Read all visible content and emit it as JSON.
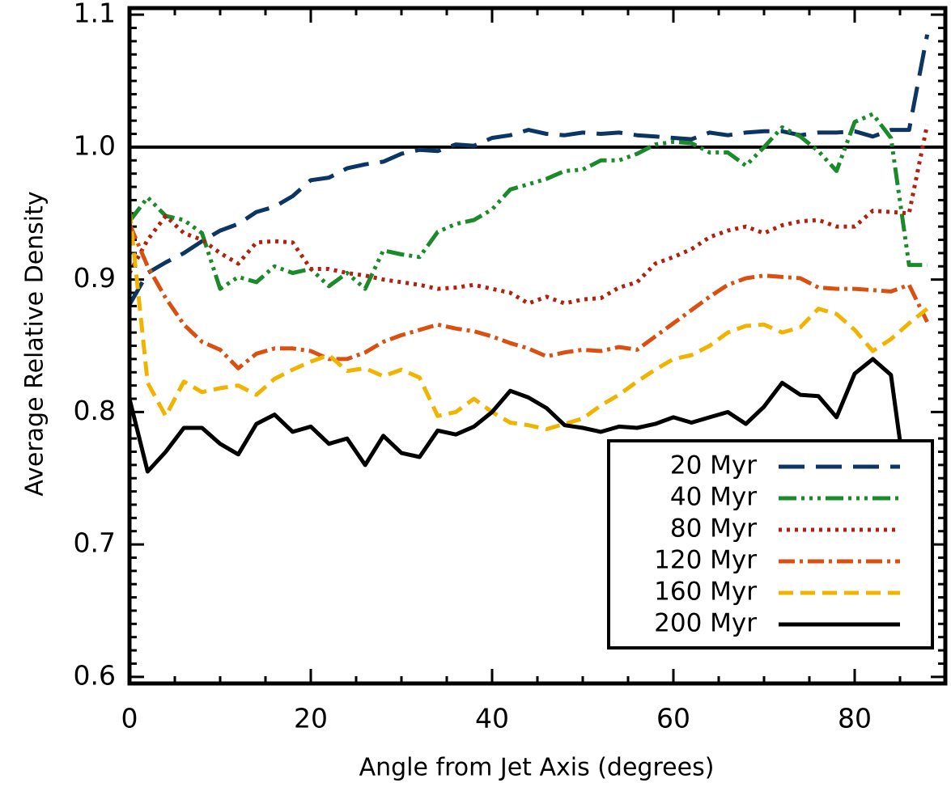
{
  "chart_data": {
    "type": "line",
    "xlabel": "Angle from Jet Axis (degrees)",
    "ylabel": "Average Relative Density",
    "xlim": [
      0,
      90
    ],
    "ylim": [
      0.595,
      1.105
    ],
    "x_ticks": [
      0,
      20,
      40,
      60,
      80
    ],
    "x_tick_labels": [
      "0",
      "20",
      "40",
      "60",
      "80"
    ],
    "y_ticks": [
      0.6,
      0.7,
      0.8,
      0.9,
      1.0,
      1.1
    ],
    "y_tick_labels": [
      "0.6",
      "0.7",
      "0.8",
      "0.9",
      "1.0",
      "1.1"
    ],
    "reference_line": 1.0,
    "legend_position": "lower-right",
    "grid": false,
    "x": [
      0,
      2,
      4,
      6,
      8,
      10,
      12,
      14,
      16,
      18,
      20,
      22,
      24,
      26,
      28,
      30,
      32,
      34,
      36,
      38,
      40,
      42,
      44,
      46,
      48,
      50,
      52,
      54,
      56,
      58,
      60,
      62,
      64,
      66,
      68,
      70,
      72,
      74,
      76,
      78,
      80,
      82,
      84,
      86,
      88
    ],
    "series": [
      {
        "name": "20 Myr",
        "color": "#0b3563",
        "dash": "32 14",
        "values": [
          0.881,
          0.905,
          0.913,
          0.92,
          0.929,
          0.937,
          0.942,
          0.951,
          0.955,
          0.963,
          0.975,
          0.977,
          0.984,
          0.987,
          0.989,
          0.995,
          0.998,
          0.997,
          1.002,
          1.001,
          1.007,
          1.009,
          1.013,
          1.01,
          1.009,
          1.011,
          1.01,
          1.011,
          1.009,
          1.008,
          1.007,
          1.006,
          1.011,
          1.009,
          1.011,
          1.012,
          1.012,
          1.009,
          1.011,
          1.011,
          1.012,
          1.008,
          1.013,
          1.013,
          1.085
        ]
      },
      {
        "name": "40 Myr",
        "color": "#1a8a2a",
        "dash": "22 6 4 6 4 6 4 6",
        "values": [
          0.944,
          0.962,
          0.948,
          0.945,
          0.935,
          0.893,
          0.902,
          0.898,
          0.91,
          0.905,
          0.908,
          0.895,
          0.905,
          0.893,
          0.922,
          0.919,
          0.917,
          0.936,
          0.942,
          0.945,
          0.953,
          0.968,
          0.972,
          0.976,
          0.982,
          0.983,
          0.99,
          0.99,
          0.995,
          1.002,
          1.004,
          1.003,
          0.996,
          0.996,
          0.986,
          1.0,
          1.015,
          1.008,
          0.997,
          0.982,
          1.019,
          1.025,
          1.007,
          0.911,
          0.911
        ]
      },
      {
        "name": "80 Myr",
        "color": "#b22010",
        "dash": "4 6",
        "values": [
          0.905,
          0.93,
          0.948,
          0.935,
          0.93,
          0.92,
          0.912,
          0.928,
          0.929,
          0.928,
          0.908,
          0.908,
          0.905,
          0.903,
          0.9,
          0.898,
          0.896,
          0.893,
          0.894,
          0.896,
          0.893,
          0.89,
          0.882,
          0.887,
          0.882,
          0.885,
          0.886,
          0.894,
          0.898,
          0.912,
          0.917,
          0.923,
          0.932,
          0.937,
          0.94,
          0.935,
          0.941,
          0.944,
          0.945,
          0.94,
          0.94,
          0.952,
          0.951,
          0.95,
          1.017
        ]
      },
      {
        "name": "120 Myr",
        "color": "#d95010",
        "dash": "20 6 4 6",
        "values": [
          0.942,
          0.91,
          0.886,
          0.866,
          0.853,
          0.847,
          0.833,
          0.844,
          0.848,
          0.848,
          0.846,
          0.84,
          0.84,
          0.845,
          0.853,
          0.858,
          0.862,
          0.866,
          0.863,
          0.861,
          0.857,
          0.852,
          0.848,
          0.842,
          0.845,
          0.847,
          0.846,
          0.849,
          0.847,
          0.857,
          0.867,
          0.877,
          0.887,
          0.896,
          0.901,
          0.903,
          0.902,
          0.901,
          0.894,
          0.893,
          0.893,
          0.892,
          0.891,
          0.896,
          0.868
        ]
      },
      {
        "name": "160 Myr",
        "color": "#f0b400",
        "dash": "18 9",
        "values": [
          0.953,
          0.822,
          0.797,
          0.823,
          0.815,
          0.818,
          0.82,
          0.813,
          0.825,
          0.832,
          0.838,
          0.843,
          0.831,
          0.833,
          0.827,
          0.832,
          0.826,
          0.797,
          0.8,
          0.81,
          0.8,
          0.792,
          0.79,
          0.787,
          0.791,
          0.795,
          0.805,
          0.813,
          0.823,
          0.832,
          0.84,
          0.843,
          0.85,
          0.86,
          0.865,
          0.866,
          0.86,
          0.864,
          0.878,
          0.874,
          0.862,
          0.846,
          0.855,
          0.867,
          0.878
        ]
      },
      {
        "name": "200 Myr",
        "color": "#000000",
        "dash": "none",
        "values": [
          0.81,
          0.755,
          0.77,
          0.788,
          0.788,
          0.776,
          0.768,
          0.791,
          0.798,
          0.785,
          0.789,
          0.776,
          0.78,
          0.76,
          0.782,
          0.769,
          0.766,
          0.786,
          0.783,
          0.789,
          0.8,
          0.816,
          0.811,
          0.803,
          0.79,
          0.788,
          0.785,
          0.789,
          0.788,
          0.791,
          0.796,
          0.792,
          0.796,
          0.8,
          0.791,
          0.804,
          0.822,
          0.813,
          0.812,
          0.796,
          0.829,
          0.84,
          0.828,
          0.728,
          0.695
        ]
      }
    ]
  }
}
